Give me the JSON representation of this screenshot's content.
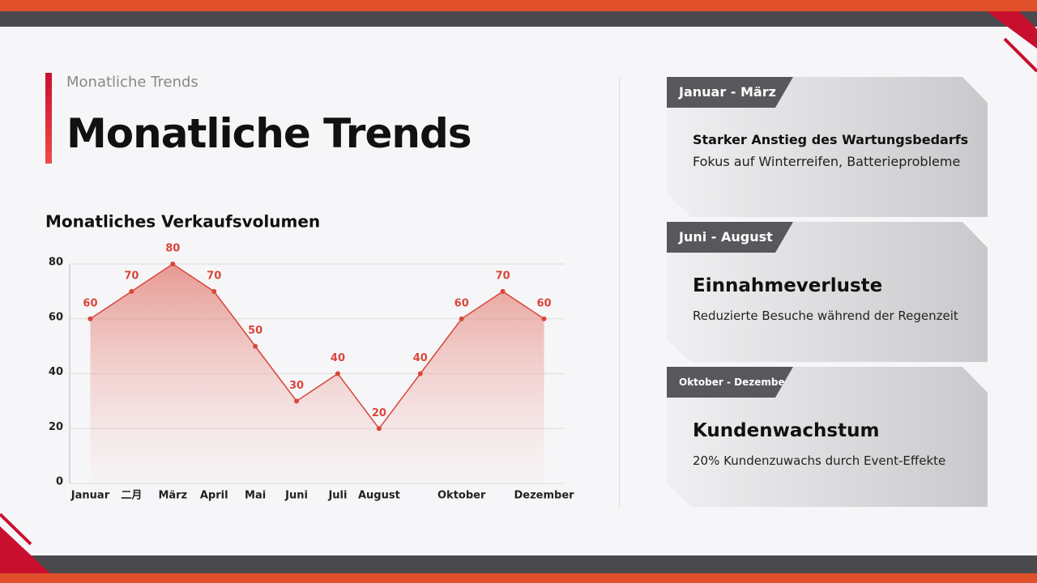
{
  "header": {
    "subtitle": "Monatliche Trends",
    "title": "Monatliche Trends"
  },
  "chart_data": {
    "type": "area",
    "title": "Monatliches Verkaufsvolumen",
    "categories": [
      "Januar",
      "二月",
      "März",
      "April",
      "Mai",
      "Juni",
      "Juli",
      "August",
      null,
      "Oktober",
      null,
      "Dezember"
    ],
    "values": [
      60,
      70,
      80,
      70,
      50,
      30,
      40,
      20,
      40,
      60,
      70,
      60
    ],
    "color": "#d9463a",
    "ylim": [
      0,
      80
    ],
    "yticks": [
      0,
      20,
      40,
      60,
      80
    ],
    "grid": true
  },
  "cards": [
    {
      "label": "Januar - März",
      "heading": "Starker Anstieg des Wartungsbedarfs",
      "text": "Fokus auf Winterreifen, Batterieprobleme"
    },
    {
      "label": "Juni - August",
      "heading": "Einnahmeverluste",
      "text": "Reduzierte Besuche während der Regenzeit"
    },
    {
      "label": "Oktober - Dezember",
      "heading": "Kundenwachstum",
      "text": "20% Kundenzuwachs durch Event-Effekte"
    }
  ]
}
